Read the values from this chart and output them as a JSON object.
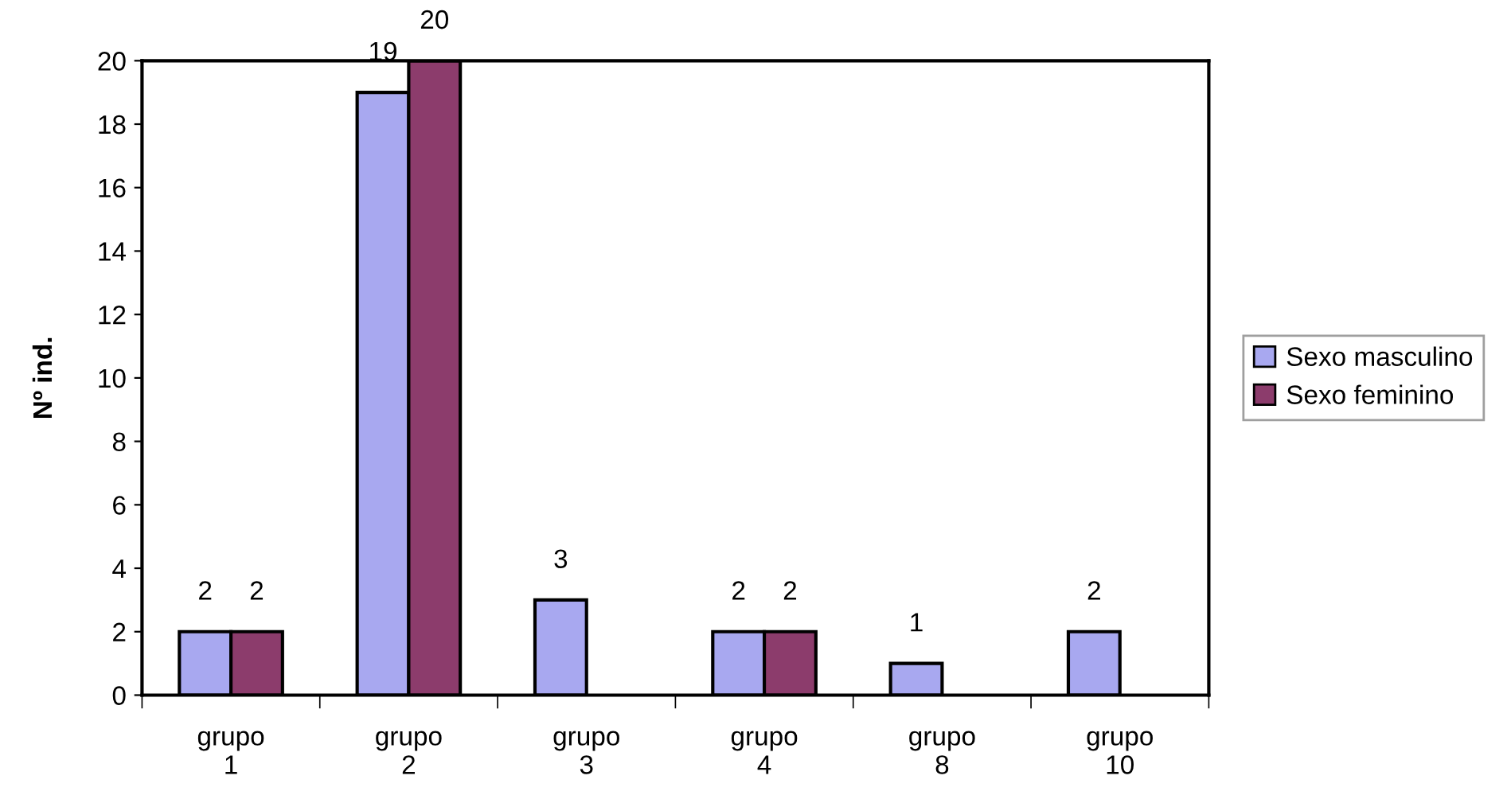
{
  "chart_data": {
    "type": "bar",
    "ylabel": "Nº ind.",
    "categories": [
      "grupo\n1",
      "grupo\n2",
      "grupo\n3",
      "grupo\n4",
      "grupo\n8",
      "grupo\n10"
    ],
    "series": [
      {
        "name": "Sexo masculino",
        "color": "#a8a8f0",
        "values": [
          2,
          19,
          3,
          2,
          1,
          2
        ]
      },
      {
        "name": "Sexo feminino",
        "color": "#8c3c6c",
        "values": [
          2,
          20,
          null,
          2,
          null,
          null
        ]
      }
    ],
    "ylim": [
      0,
      20
    ],
    "yticks": [
      0,
      2,
      4,
      6,
      8,
      10,
      12,
      14,
      16,
      18,
      20
    ],
    "data_labels": true,
    "legend": "right",
    "grid": false
  }
}
